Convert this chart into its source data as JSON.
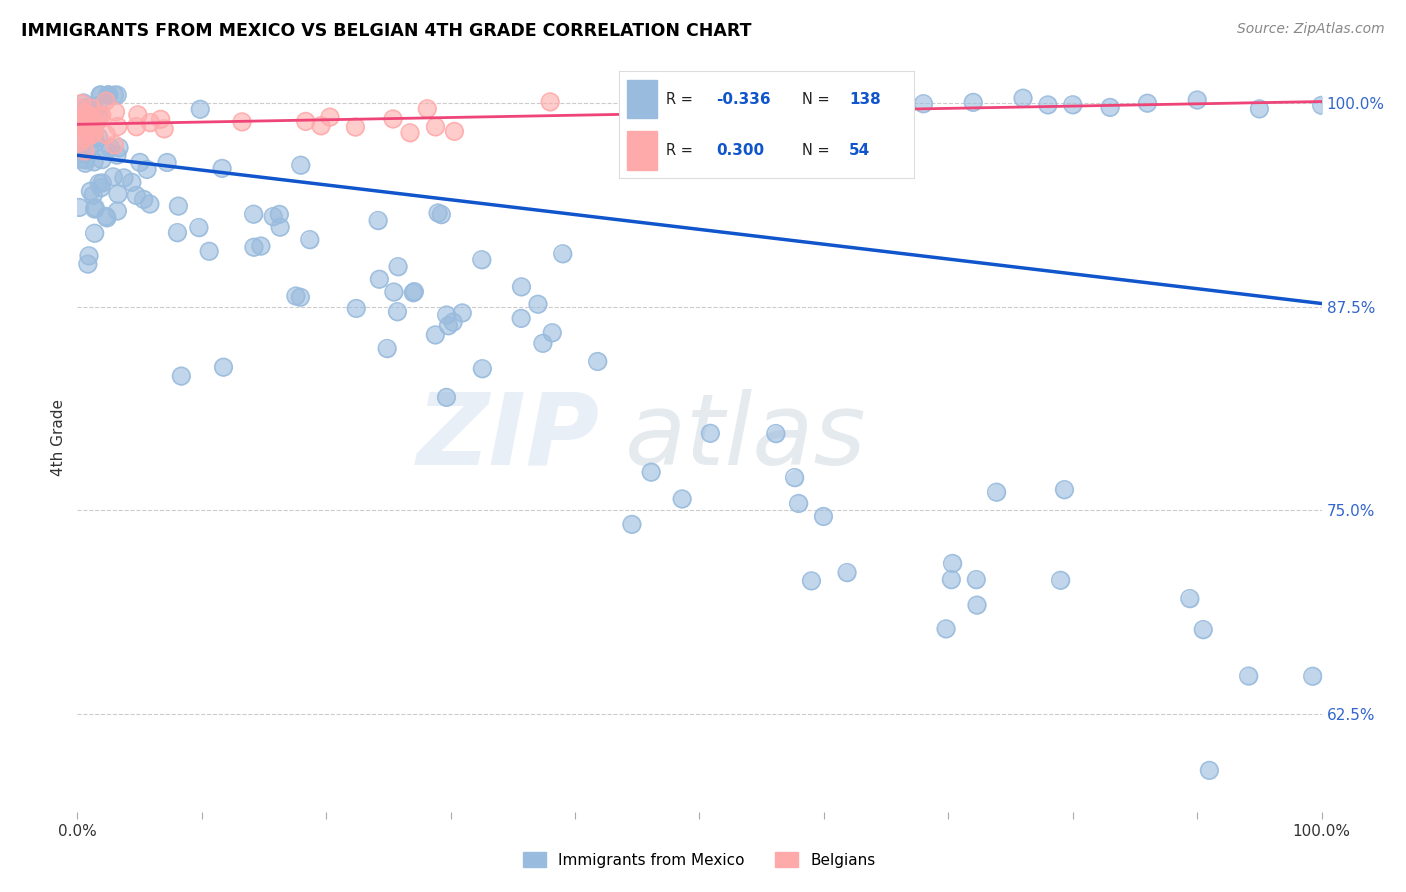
{
  "title": "IMMIGRANTS FROM MEXICO VS BELGIAN 4TH GRADE CORRELATION CHART",
  "source": "Source: ZipAtlas.com",
  "ylabel": "4th Grade",
  "ytick_labels": [
    "100.0%",
    "87.5%",
    "75.0%",
    "62.5%"
  ],
  "ytick_values": [
    1.0,
    0.875,
    0.75,
    0.625
  ],
  "xlim": [
    0.0,
    1.0
  ],
  "ylim": [
    0.565,
    1.025
  ],
  "legend_blue_r": "-0.336",
  "legend_blue_n": "138",
  "legend_pink_r": "0.300",
  "legend_pink_n": "54",
  "legend_label_blue": "Immigrants from Mexico",
  "legend_label_pink": "Belgians",
  "color_blue": "#99BBDD",
  "color_pink": "#FFAAAA",
  "trendline_blue": "#1155CC",
  "trendline_pink": "#EE4477",
  "watermark_zip": "ZIP",
  "watermark_atlas": "atlas",
  "background_color": "#FFFFFF",
  "trendline_blue_y_start": 0.968,
  "trendline_blue_y_end": 0.877,
  "trendline_pink_y_start": 0.987,
  "trendline_pink_y_end": 1.001,
  "trendline_pink_x_end": 1.0
}
